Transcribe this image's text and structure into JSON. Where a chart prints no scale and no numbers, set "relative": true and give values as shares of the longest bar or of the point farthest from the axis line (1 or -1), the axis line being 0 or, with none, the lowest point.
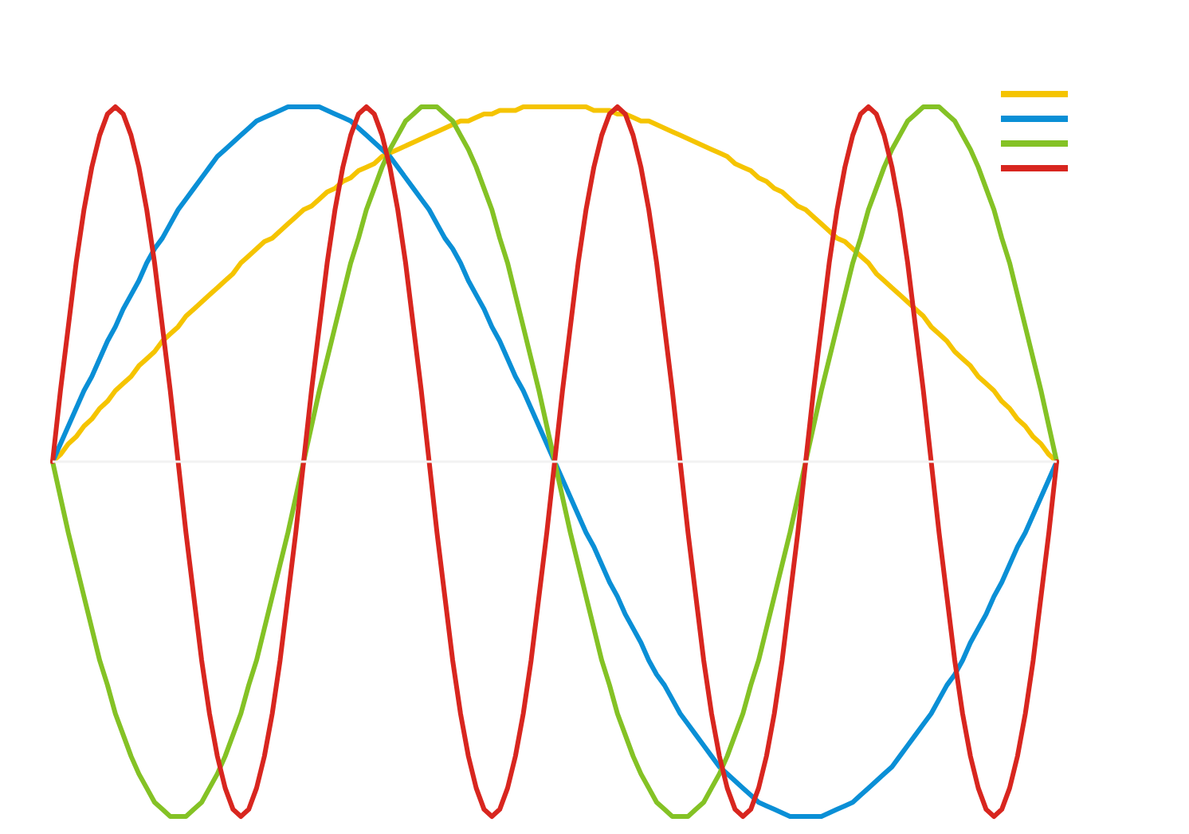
{
  "chart_data": {
    "type": "line",
    "relative": true,
    "line_style": "solid",
    "categories": [
      null,
      null,
      null,
      null,
      null,
      null,
      null,
      null,
      null,
      null,
      null,
      null,
      null,
      null,
      null,
      null,
      null,
      null,
      null,
      null,
      null,
      null,
      null,
      null,
      null,
      null,
      null,
      null,
      null,
      null,
      null,
      null,
      null,
      null,
      null,
      null,
      null,
      null,
      null,
      null,
      null,
      null,
      null,
      null,
      null,
      null,
      null,
      null,
      null,
      null,
      null,
      null,
      null,
      null,
      null,
      null,
      null,
      null,
      null,
      null,
      null,
      null,
      null,
      null,
      null,
      null,
      null,
      null,
      null,
      null,
      null,
      null,
      null,
      null,
      null,
      null,
      null,
      null,
      null,
      null,
      null,
      null,
      null,
      null,
      null,
      null,
      null,
      null,
      null,
      null,
      null,
      null,
      null,
      null,
      null,
      null,
      null,
      null,
      null,
      null,
      null,
      null,
      null,
      null,
      null,
      null,
      null,
      null,
      null,
      null,
      null,
      null,
      null,
      null,
      null,
      null,
      null,
      null,
      null,
      null,
      null,
      null,
      null,
      null,
      null,
      null,
      null,
      null,
      null
    ],
    "series": [
      {
        "color": "#f5c400",
        "values": [
          0,
          0.02,
          0.05,
          0.07,
          0.1,
          0.12,
          0.15,
          0.17,
          0.2,
          0.22,
          0.24,
          0.27,
          0.29,
          0.31,
          0.34,
          0.36,
          0.38,
          0.41,
          0.43,
          0.45,
          0.47,
          0.49,
          0.51,
          0.53,
          0.56,
          0.58,
          0.6,
          0.62,
          0.63,
          0.65,
          0.67,
          0.69,
          0.71,
          0.72,
          0.74,
          0.76,
          0.77,
          0.79,
          0.8,
          0.82,
          0.83,
          0.84,
          0.86,
          0.87,
          0.88,
          0.89,
          0.9,
          0.91,
          0.92,
          0.93,
          0.94,
          0.95,
          0.96,
          0.96,
          0.97,
          0.98,
          0.98,
          0.99,
          0.99,
          0.99,
          1,
          1,
          1,
          1,
          1,
          1,
          1,
          1,
          1,
          0.99,
          0.99,
          0.99,
          0.98,
          0.98,
          0.97,
          0.96,
          0.96,
          0.95,
          0.94,
          0.93,
          0.92,
          0.91,
          0.9,
          0.89,
          0.88,
          0.87,
          0.86,
          0.84,
          0.83,
          0.82,
          0.8,
          0.79,
          0.77,
          0.76,
          0.74,
          0.72,
          0.71,
          0.69,
          0.67,
          0.65,
          0.63,
          0.62,
          0.6,
          0.58,
          0.56,
          0.53,
          0.51,
          0.49,
          0.47,
          0.45,
          0.43,
          0.41,
          0.38,
          0.36,
          0.34,
          0.31,
          0.29,
          0.27,
          0.24,
          0.22,
          0.2,
          0.17,
          0.15,
          0.12,
          0.1,
          0.07,
          0.05,
          0.02,
          0
        ]
      },
      {
        "color": "#0a8fd6",
        "values": [
          0,
          0.05,
          0.1,
          0.15,
          0.2,
          0.24,
          0.29,
          0.34,
          0.38,
          0.43,
          0.47,
          0.51,
          0.56,
          0.6,
          0.63,
          0.67,
          0.71,
          0.74,
          0.77,
          0.8,
          0.83,
          0.86,
          0.88,
          0.9,
          0.92,
          0.94,
          0.96,
          0.97,
          0.98,
          0.99,
          1,
          1,
          1,
          1,
          1,
          0.99,
          0.98,
          0.97,
          0.96,
          0.94,
          0.92,
          0.9,
          0.88,
          0.86,
          0.83,
          0.8,
          0.77,
          0.74,
          0.71,
          0.67,
          0.63,
          0.6,
          0.56,
          0.51,
          0.47,
          0.43,
          0.38,
          0.34,
          0.29,
          0.24,
          0.2,
          0.15,
          0.1,
          0.05,
          0,
          -0.05,
          -0.1,
          -0.15,
          -0.2,
          -0.24,
          -0.29,
          -0.34,
          -0.38,
          -0.43,
          -0.47,
          -0.51,
          -0.56,
          -0.6,
          -0.63,
          -0.67,
          -0.71,
          -0.74,
          -0.77,
          -0.8,
          -0.83,
          -0.86,
          -0.88,
          -0.9,
          -0.92,
          -0.94,
          -0.96,
          -0.97,
          -0.98,
          -0.99,
          -1,
          -1,
          -1,
          -1,
          -1,
          -0.99,
          -0.98,
          -0.97,
          -0.96,
          -0.94,
          -0.92,
          -0.9,
          -0.88,
          -0.86,
          -0.83,
          -0.8,
          -0.77,
          -0.74,
          -0.71,
          -0.67,
          -0.63,
          -0.6,
          -0.56,
          -0.51,
          -0.47,
          -0.43,
          -0.38,
          -0.34,
          -0.29,
          -0.24,
          -0.2,
          -0.15,
          -0.1,
          -0.05,
          0
        ]
      },
      {
        "color": "#84c225",
        "values": [
          0,
          -0.1,
          -0.2,
          -0.29,
          -0.38,
          -0.47,
          -0.56,
          -0.63,
          -0.71,
          -0.77,
          -0.83,
          -0.88,
          -0.92,
          -0.96,
          -0.98,
          -1,
          -1,
          -1,
          -0.98,
          -0.96,
          -0.92,
          -0.88,
          -0.83,
          -0.77,
          -0.71,
          -0.63,
          -0.56,
          -0.47,
          -0.38,
          -0.29,
          -0.2,
          -0.1,
          0,
          0.1,
          0.2,
          0.29,
          0.38,
          0.47,
          0.56,
          0.63,
          0.71,
          0.77,
          0.83,
          0.88,
          0.92,
          0.96,
          0.98,
          1,
          1,
          1,
          0.98,
          0.96,
          0.92,
          0.88,
          0.83,
          0.77,
          0.71,
          0.63,
          0.56,
          0.47,
          0.38,
          0.29,
          0.2,
          0.1,
          0,
          -0.1,
          -0.2,
          -0.29,
          -0.38,
          -0.47,
          -0.56,
          -0.63,
          -0.71,
          -0.77,
          -0.83,
          -0.88,
          -0.92,
          -0.96,
          -0.98,
          -1,
          -1,
          -1,
          -0.98,
          -0.96,
          -0.92,
          -0.88,
          -0.83,
          -0.77,
          -0.71,
          -0.63,
          -0.56,
          -0.47,
          -0.38,
          -0.29,
          -0.2,
          -0.1,
          0,
          0.1,
          0.2,
          0.29,
          0.38,
          0.47,
          0.56,
          0.63,
          0.71,
          0.77,
          0.83,
          0.88,
          0.92,
          0.96,
          0.98,
          1,
          1,
          1,
          0.98,
          0.96,
          0.92,
          0.88,
          0.83,
          0.77,
          0.71,
          0.63,
          0.56,
          0.47,
          0.38,
          0.29,
          0.2,
          0.1,
          0
        ]
      },
      {
        "color": "#d8261f",
        "values": [
          0,
          0.2,
          0.38,
          0.56,
          0.71,
          0.83,
          0.92,
          0.98,
          1,
          0.98,
          0.92,
          0.83,
          0.71,
          0.56,
          0.38,
          0.2,
          0,
          -0.2,
          -0.38,
          -0.56,
          -0.71,
          -0.83,
          -0.92,
          -0.98,
          -1,
          -0.98,
          -0.92,
          -0.83,
          -0.71,
          -0.56,
          -0.38,
          -0.2,
          0,
          0.2,
          0.38,
          0.56,
          0.71,
          0.83,
          0.92,
          0.98,
          1,
          0.98,
          0.92,
          0.83,
          0.71,
          0.56,
          0.38,
          0.2,
          0,
          -0.2,
          -0.38,
          -0.56,
          -0.71,
          -0.83,
          -0.92,
          -0.98,
          -1,
          -0.98,
          -0.92,
          -0.83,
          -0.71,
          -0.56,
          -0.38,
          -0.2,
          0,
          0.2,
          0.38,
          0.56,
          0.71,
          0.83,
          0.92,
          0.98,
          1,
          0.98,
          0.92,
          0.83,
          0.71,
          0.56,
          0.38,
          0.2,
          0,
          -0.2,
          -0.38,
          -0.56,
          -0.71,
          -0.83,
          -0.92,
          -0.98,
          -1,
          -0.98,
          -0.92,
          -0.83,
          -0.71,
          -0.56,
          -0.38,
          -0.2,
          0,
          0.2,
          0.38,
          0.56,
          0.71,
          0.83,
          0.92,
          0.98,
          1,
          0.98,
          0.92,
          0.83,
          0.71,
          0.56,
          0.38,
          0.2,
          0,
          -0.2,
          -0.38,
          -0.56,
          -0.71,
          -0.83,
          -0.92,
          -0.98,
          -1,
          -0.98,
          -0.92,
          -0.83,
          -0.71,
          -0.56,
          -0.38,
          -0.2,
          0
        ]
      }
    ]
  }
}
